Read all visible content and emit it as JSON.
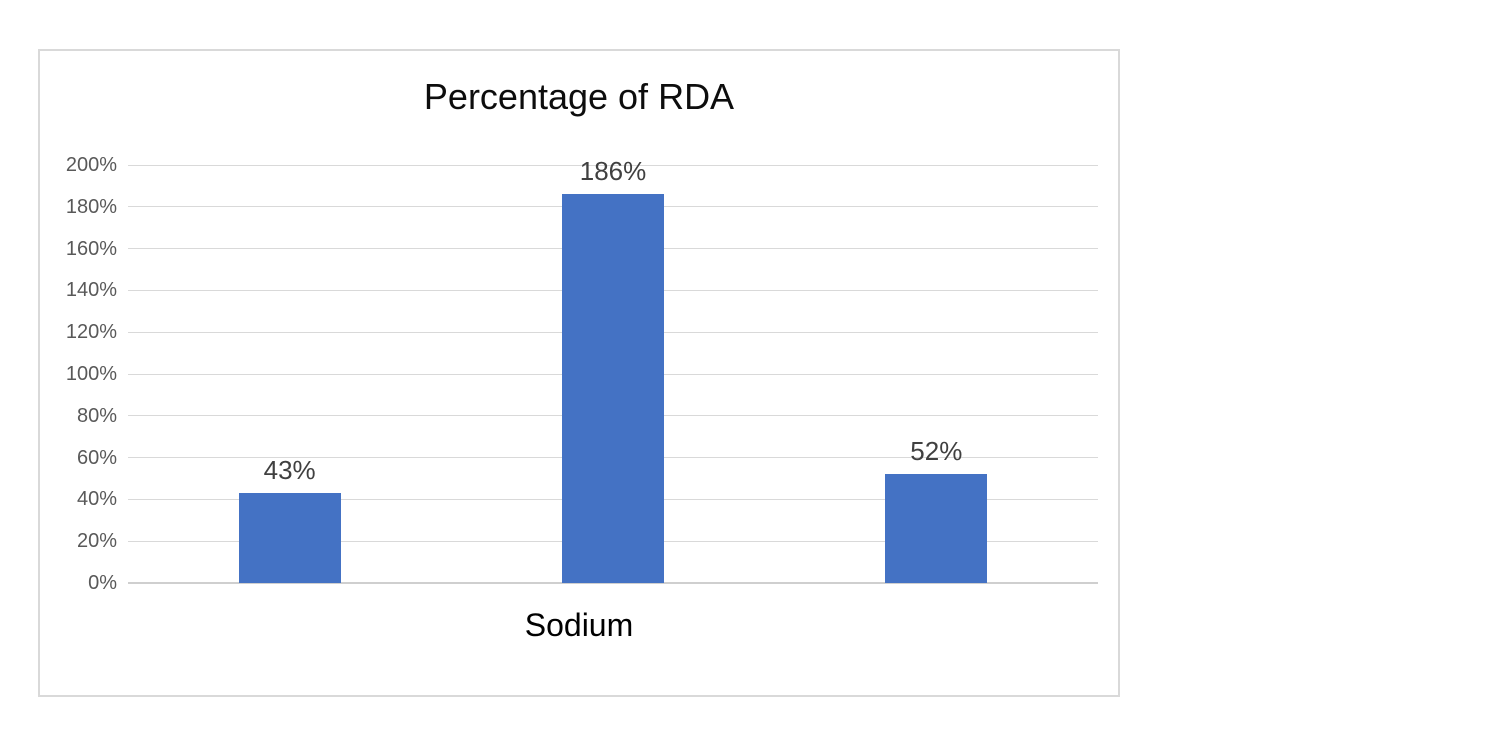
{
  "chart_data": {
    "type": "bar",
    "title": "Percentage of RDA",
    "xlabel": "Sodium",
    "ylabel": "",
    "categories": [
      "",
      "",
      ""
    ],
    "values": [
      43,
      186,
      52
    ],
    "data_labels": [
      "43%",
      "186%",
      "52%"
    ],
    "ylim": [
      0,
      200
    ],
    "ytick_step": 20,
    "ytick_labels": [
      "0%",
      "20%",
      "40%",
      "60%",
      "80%",
      "100%",
      "120%",
      "140%",
      "160%",
      "180%",
      "200%"
    ],
    "grid": true,
    "legend": "none",
    "bar_color": "#4472c4",
    "gridline_color": "#d9d9d9",
    "axis_line_color": "#cfcfcf",
    "tick_label_color": "#595959",
    "data_label_color": "#404040",
    "title_color": "#0d0d0d",
    "axis_title_color": "#000000",
    "frame_border_color": "#d9d9d9",
    "background_color": "#ffffff"
  }
}
